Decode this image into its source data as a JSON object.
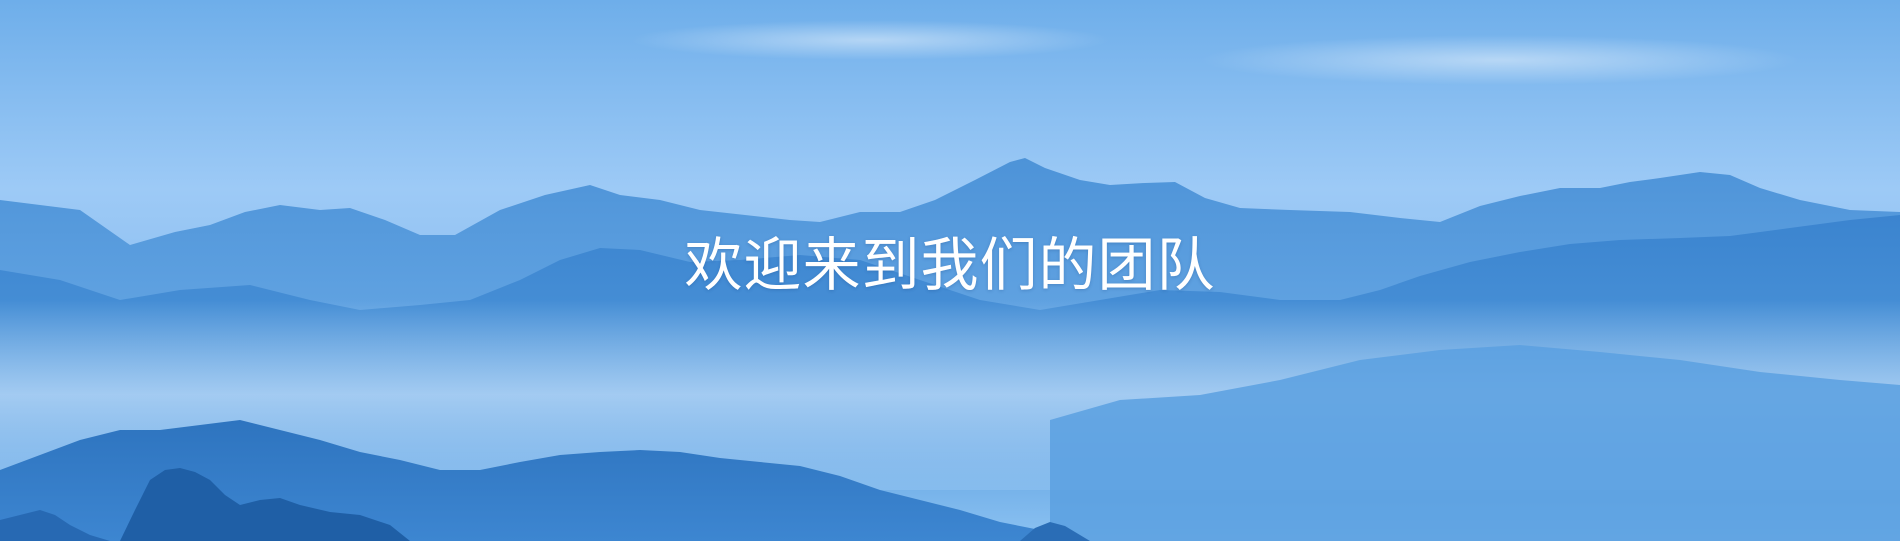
{
  "banner": {
    "headline": "欢迎来到我们的团队",
    "background_description_icon": "mountain-landscape-icon"
  },
  "colors": {
    "sky_top": "#6fb2ee",
    "sky_light": "#a9d3fb",
    "ridge_far": "#5d9fdc",
    "ridge_mid": "#3c86d0",
    "ridge_near": "#2a71bd",
    "mist": "#c9e3fb",
    "top_accent": "#17b7c9",
    "headline": "#ffffff"
  }
}
